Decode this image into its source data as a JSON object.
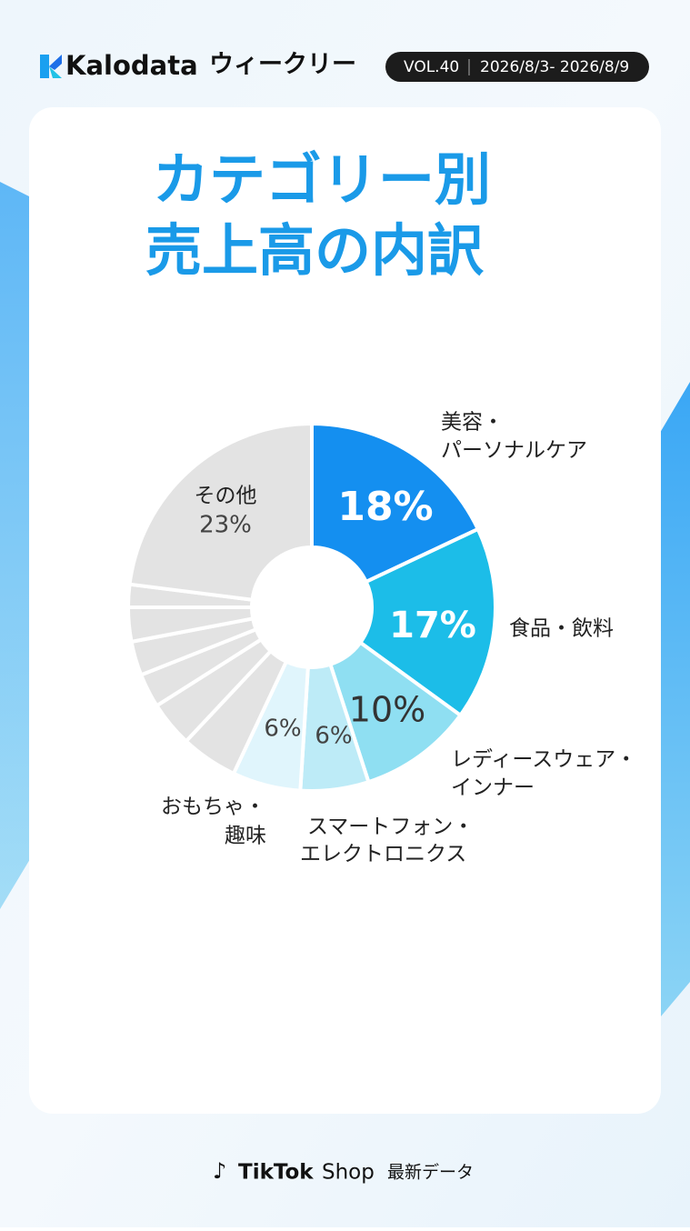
{
  "header": {
    "brand": "Kalodata",
    "series": "ウィークリー",
    "volume": "VOL.40",
    "period": "2026/8/3- 2026/8/9"
  },
  "chart_data": {
    "type": "pie",
    "title": [
      "カテゴリー別",
      "売上高の内訳"
    ],
    "categories": [
      [
        "美容・",
        "パーソナルケア"
      ],
      [
        "食品・飲料"
      ],
      [
        "レディースウェア・",
        "インナー"
      ],
      [
        "スマートフォン・",
        "エレクトロニクス"
      ],
      [
        "おもちゃ・",
        "趣味"
      ],
      null,
      null,
      null,
      null,
      null,
      null,
      [
        "その他"
      ]
    ],
    "values": [
      18,
      17,
      10,
      6,
      6,
      5,
      4,
      3,
      3,
      3,
      2,
      23
    ],
    "value_labels": [
      "18%",
      "17%",
      "10%",
      "6%",
      "6%",
      null,
      null,
      null,
      null,
      null,
      null,
      "23%"
    ],
    "colors": [
      "#148ff0",
      "#1cbde8",
      "#8fdff2",
      "#bdebf7",
      "#e0f5fc",
      "#e3e3e3",
      "#e3e3e3",
      "#e3e3e3",
      "#e3e3e3",
      "#e3e3e3",
      "#e3e3e3",
      "#e3e3e3"
    ]
  },
  "footer": {
    "brand": "TikTok",
    "product": "Shop",
    "note": "最新データ"
  }
}
